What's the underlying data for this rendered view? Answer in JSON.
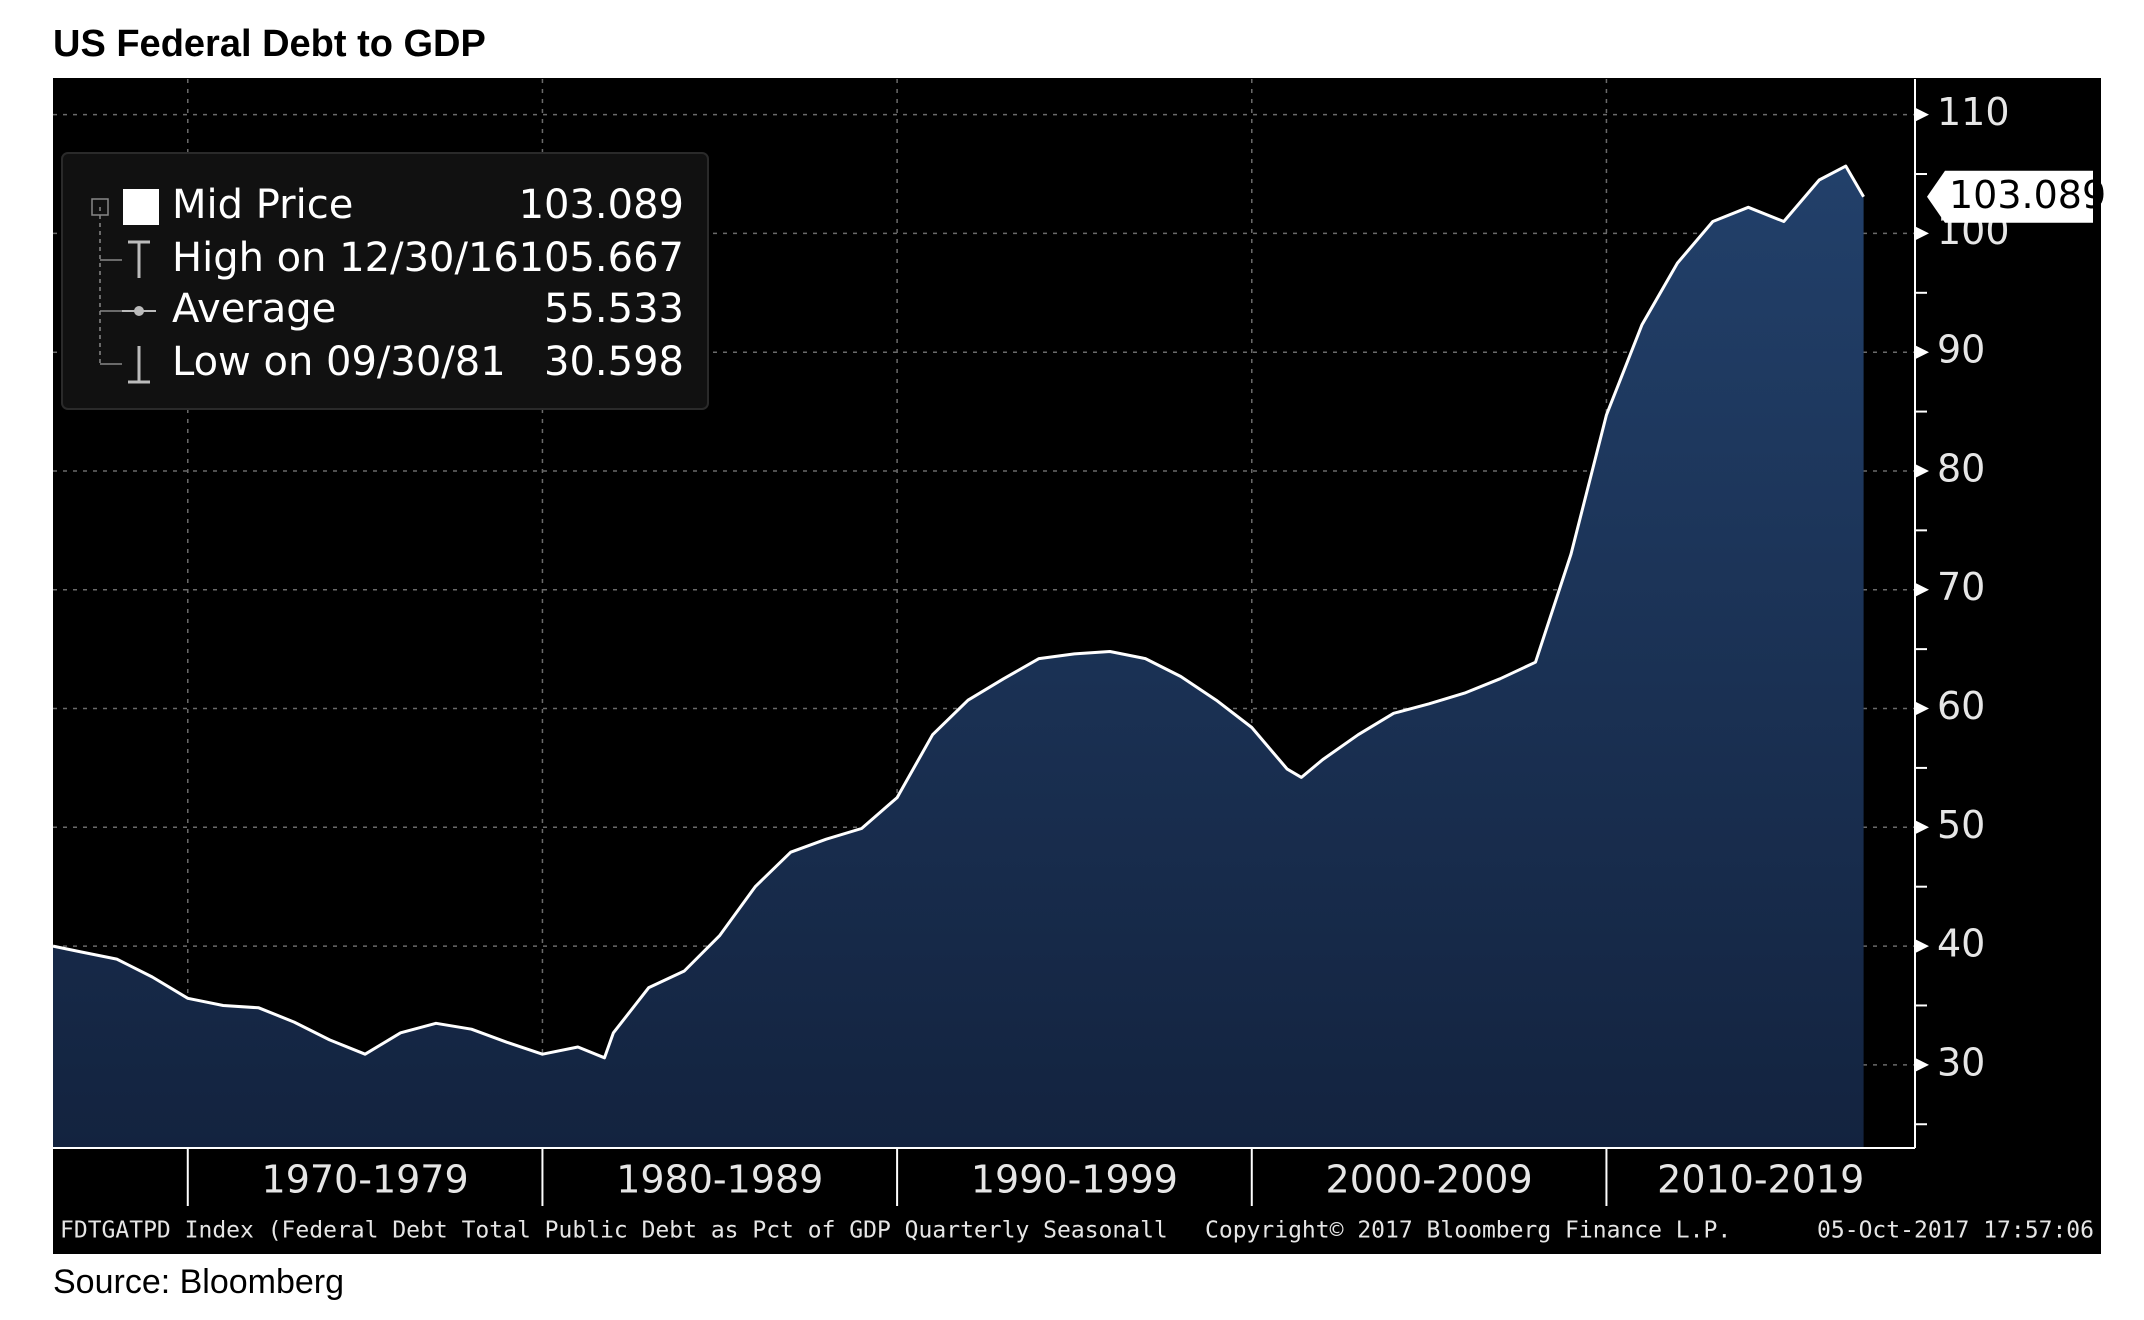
{
  "chart_data": {
    "type": "area",
    "title": "US Federal Debt to GDP",
    "source": "Source: Bloomberg",
    "series": [
      {
        "name": "Mid Price",
        "color": "#ffffff",
        "x": [
          1966.2,
          1967,
          1968,
          1969,
          1970,
          1971,
          1972,
          1973,
          1974,
          1975,
          1976,
          1977,
          1978,
          1979,
          1980,
          1981,
          1981.75,
          1982,
          1983,
          1984,
          1985,
          1986,
          1987,
          1988,
          1989,
          1990,
          1991,
          1992,
          1993,
          1994,
          1995,
          1996,
          1997,
          1998,
          1999,
          2000,
          2001,
          2001.4,
          2002,
          2003,
          2004,
          2005,
          2006,
          2007,
          2008,
          2009,
          2010,
          2011,
          2012,
          2013,
          2014,
          2015,
          2016,
          2016.75,
          2017.25
        ],
        "values": [
          40.0,
          39.5,
          38.9,
          37.4,
          35.6,
          35.0,
          34.8,
          33.6,
          32.1,
          30.9,
          32.7,
          33.5,
          33.0,
          31.9,
          30.9,
          31.5,
          30.598,
          32.7,
          36.5,
          37.9,
          40.9,
          45.0,
          47.9,
          49.0,
          49.9,
          52.5,
          57.8,
          60.7,
          62.5,
          64.2,
          64.6,
          64.8,
          64.2,
          62.7,
          60.7,
          58.4,
          54.9,
          54.2,
          55.7,
          57.8,
          59.6,
          60.4,
          61.3,
          62.5,
          63.9,
          73.0,
          84.7,
          92.3,
          97.5,
          101.0,
          102.2,
          101.0,
          104.5,
          105.667,
          103.089
        ]
      }
    ],
    "legend": [
      {
        "label": "High on 12/30/16",
        "value": 105.667
      },
      {
        "label": "Average",
        "value": 55.533
      },
      {
        "label": "Low on 09/30/81",
        "value": 30.598
      }
    ],
    "xlim": [
      1966.2,
      2018.7
    ],
    "xticks": [
      1970,
      1980,
      1990,
      2000,
      2010
    ],
    "xtick_labels": [
      "1970-1979",
      "1980-1989",
      "1990-1999",
      "2000-2009",
      "2010-2019"
    ],
    "ylim": [
      23,
      113
    ],
    "yticks": [
      30,
      40,
      50,
      60,
      70,
      80,
      90,
      100,
      110
    ],
    "grid": true,
    "footer": [
      "FDTGATPD Index (Federal Debt Total Public Debt as Pct of GDP Quarterly Seasonall",
      "Copyright© 2017 Bloomberg Finance L.P.",
      "05-Oct-2017 17:57:06"
    ]
  }
}
